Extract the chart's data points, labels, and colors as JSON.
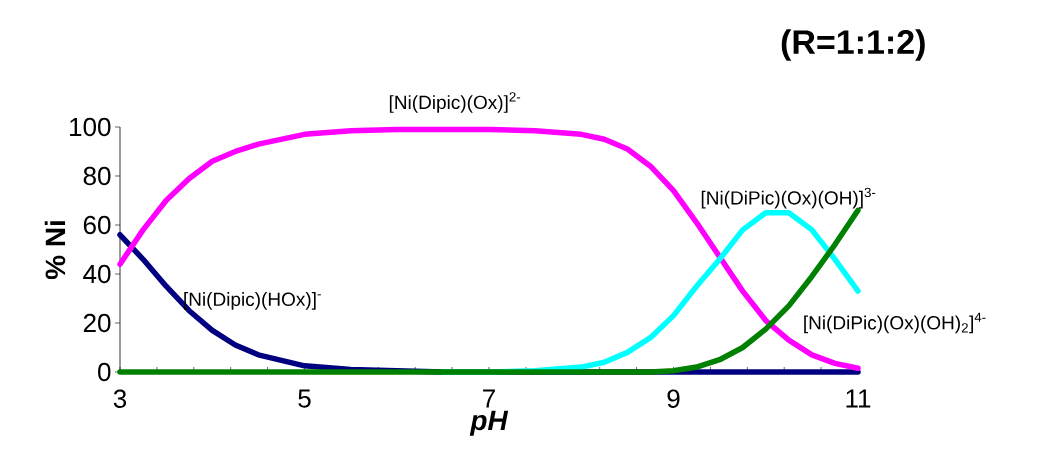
{
  "chart_data": {
    "type": "line",
    "title": "(R=1:1:2)",
    "xlabel": "pH",
    "ylabel": "% Ni",
    "x": [
      3,
      3.25,
      3.5,
      3.75,
      4,
      4.25,
      4.5,
      5,
      5.5,
      6,
      6.5,
      7,
      7.5,
      8,
      8.25,
      8.5,
      8.75,
      9,
      9.25,
      9.5,
      9.75,
      10,
      10.25,
      10.5,
      10.75,
      11
    ],
    "series": [
      {
        "name": "[Ni(Dipic)(HOx)]$^{-}$",
        "color": "#000080",
        "values": [
          56,
          46,
          35,
          25,
          17,
          11,
          7,
          2.5,
          1,
          0.5,
          0,
          0,
          0,
          0,
          0,
          0,
          0,
          0,
          0,
          0,
          0,
          0,
          0,
          0,
          0,
          0
        ]
      },
      {
        "name": "[Ni(Dipic)(Ox)]$^{2-}$",
        "color": "#ff00ff",
        "values": [
          44,
          58,
          70,
          79,
          86,
          90,
          93,
          97,
          98.5,
          99,
          99,
          99,
          98.5,
          97,
          95,
          91,
          84,
          74,
          61,
          47,
          33,
          21,
          13,
          7,
          3.5,
          1.5
        ]
      },
      {
        "name": "[Ni(DiPic)(Ox)(OH)]$^{3-}$",
        "color": "#00ffff",
        "values": [
          null,
          null,
          null,
          null,
          null,
          null,
          null,
          null,
          null,
          null,
          0,
          0,
          0.5,
          2,
          4,
          8,
          14,
          23,
          35,
          46,
          58,
          65,
          65,
          58,
          46,
          33
        ]
      },
      {
        "name": "[Ni(DiPic)(Ox)(OH)$_{2}$]$^{4-}$",
        "color": "#008000",
        "values": [
          0,
          0,
          0,
          0,
          0,
          0,
          0,
          0,
          0,
          0,
          0,
          0,
          0,
          0,
          0,
          0,
          0,
          0.5,
          2,
          5,
          10,
          17.5,
          27,
          39,
          52,
          66
        ]
      }
    ],
    "xlim": [
      3,
      11
    ],
    "ylim": [
      0,
      100
    ],
    "xticks": [
      3,
      {
        "value": 3.4,
        "label": null
      },
      {
        "value": 3.8,
        "label": null
      },
      {
        "value": 4.2,
        "label": null
      },
      {
        "value": 4.6,
        "label": null
      },
      5,
      {
        "value": 5.4,
        "label": null
      },
      {
        "value": 5.8,
        "label": null
      },
      {
        "value": 6.2,
        "label": null
      },
      {
        "value": 6.6,
        "label": null
      },
      7,
      {
        "value": 7.4,
        "label": null
      },
      {
        "value": 7.8,
        "label": null
      },
      {
        "value": 8.2,
        "label": null
      },
      {
        "value": 8.6,
        "label": null
      },
      9,
      {
        "value": 9.4,
        "label": null
      },
      {
        "value": 9.8,
        "label": null
      },
      {
        "value": 10.2,
        "label": null
      },
      {
        "value": 10.6,
        "label": null
      },
      11
    ],
    "yticks": [
      0,
      20,
      40,
      60,
      80,
      100
    ],
    "grid": false,
    "legend": false,
    "marker": "none",
    "line_style": "solid"
  }
}
